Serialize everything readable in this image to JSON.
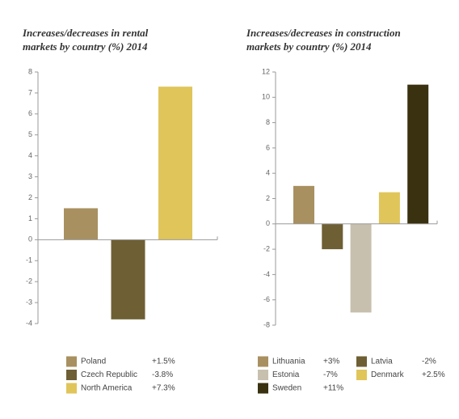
{
  "chart_data": [
    {
      "type": "bar",
      "title": "Increases/decreases in rental markets by country (%) 2014",
      "categories": [
        "Poland",
        "Czech Republic",
        "North America"
      ],
      "values": [
        1.5,
        -3.8,
        7.3
      ],
      "value_labels": [
        "+1.5%",
        "-3.8%",
        "+7.3%"
      ],
      "colors": [
        "#a89060",
        "#6e5f34",
        "#e0c55a"
      ],
      "ylim": [
        -4,
        8
      ],
      "yticks": [
        -4,
        -3,
        -2,
        -1,
        0,
        1,
        2,
        3,
        4,
        5,
        6,
        7,
        8
      ]
    },
    {
      "type": "bar",
      "title": "Increases/decreases in construction markets by country (%) 2014",
      "categories": [
        "Lithuania",
        "Latvia",
        "Estonia",
        "Denmark",
        "Sweden"
      ],
      "values": [
        3,
        -2,
        -7,
        2.5,
        11
      ],
      "value_labels": [
        "+3%",
        "-2%",
        "-7%",
        "+2.5%",
        "+11%"
      ],
      "colors": [
        "#a89060",
        "#6e5f34",
        "#c8c0ae",
        "#e0c55a",
        "#3a3110"
      ],
      "ylim": [
        -8,
        12
      ],
      "yticks": [
        -8,
        -6,
        -4,
        -2,
        0,
        2,
        4,
        6,
        8,
        10,
        12
      ]
    }
  ]
}
